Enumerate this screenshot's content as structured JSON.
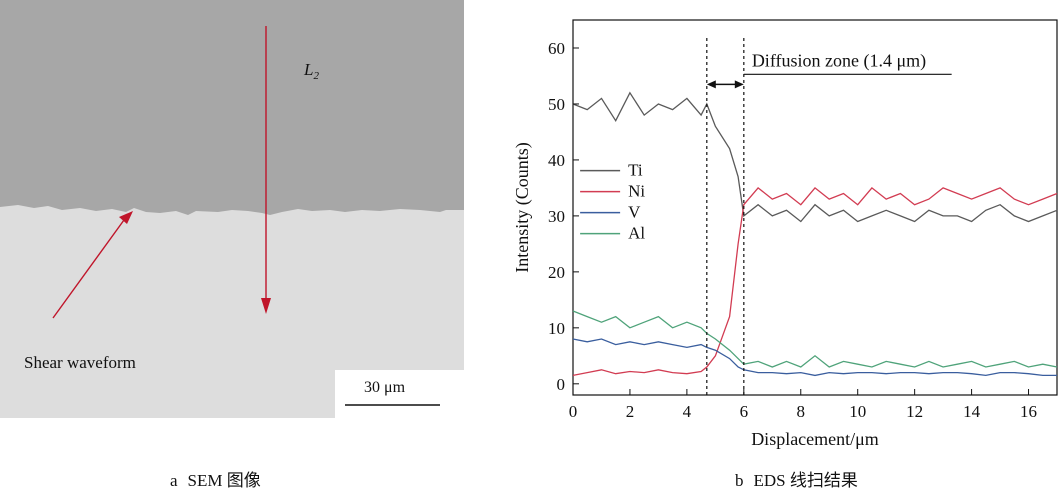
{
  "sem_panel": {
    "label_l": "L",
    "label_sub": "2",
    "annotation": "Shear waveform",
    "scale_bar": "30 μm",
    "colors": {
      "upper": "#a7a7a7",
      "lower": "#dddddd",
      "arrow": "#c0152a"
    }
  },
  "captions": {
    "a_letter": "a",
    "a_text": "SEM 图像",
    "b_letter": "b",
    "b_text": "EDS 线扫结果"
  },
  "chart_data": {
    "type": "line",
    "title": "",
    "xlabel": "Displacement/μm",
    "ylabel": "Intensity (Counts)",
    "xlim": [
      0,
      17
    ],
    "ylim": [
      -2,
      65
    ],
    "xticks": [
      0,
      2,
      4,
      6,
      8,
      10,
      12,
      14,
      16
    ],
    "yticks": [
      0,
      10,
      20,
      30,
      40,
      50,
      60
    ],
    "x": [
      0,
      0.5,
      1,
      1.5,
      2,
      2.5,
      3,
      3.5,
      4,
      4.5,
      4.7,
      5,
      5.5,
      5.8,
      6,
      6.5,
      7,
      7.5,
      8,
      8.5,
      9,
      9.5,
      10,
      10.5,
      11,
      11.5,
      12,
      12.5,
      13,
      13.5,
      14,
      14.5,
      15,
      15.5,
      16,
      16.5,
      17
    ],
    "series": [
      {
        "name": "Ti",
        "color": "#5a5a5a",
        "values": [
          50,
          49,
          51,
          47,
          52,
          48,
          50,
          49,
          51,
          48,
          50,
          46,
          42,
          37,
          30,
          32,
          30,
          31,
          29,
          32,
          30,
          31,
          29,
          30,
          31,
          30,
          29,
          31,
          30,
          30,
          29,
          31,
          32,
          30,
          29,
          30,
          31
        ]
      },
      {
        "name": "Ni",
        "color": "#d23c52",
        "values": [
          1.5,
          2,
          2.5,
          1.8,
          2.2,
          2,
          2.5,
          2,
          1.8,
          2.2,
          3,
          5,
          12,
          25,
          32,
          35,
          33,
          34,
          32,
          35,
          33,
          34,
          32,
          35,
          33,
          34,
          32,
          33,
          35,
          34,
          33,
          34,
          35,
          33,
          32,
          33,
          34
        ]
      },
      {
        "name": "V",
        "color": "#3a5e9e",
        "values": [
          8,
          7.5,
          8,
          7,
          7.5,
          7,
          7.5,
          7,
          6.5,
          7,
          6.5,
          6,
          4.5,
          3,
          2.5,
          2,
          2,
          1.8,
          2,
          1.5,
          2,
          1.8,
          2,
          2,
          1.8,
          2,
          2,
          1.8,
          2,
          2,
          1.8,
          1.5,
          2,
          2,
          1.8,
          1.5,
          1.5
        ]
      },
      {
        "name": "Al",
        "color": "#4fa37a",
        "values": [
          13,
          12,
          11,
          12,
          10,
          11,
          12,
          10,
          11,
          10,
          9,
          8,
          6,
          4.5,
          3.5,
          4,
          3,
          4,
          3,
          5,
          3,
          4,
          3.5,
          3,
          4,
          3.5,
          3,
          4,
          3,
          3.5,
          4,
          3,
          3.5,
          4,
          3,
          3.5,
          3
        ]
      }
    ],
    "annotations": {
      "diffusion_label": "Diffusion zone (1.4 μm)",
      "dashed_lines_x": [
        4.7,
        6.0
      ]
    },
    "legend_position": "center-left"
  }
}
